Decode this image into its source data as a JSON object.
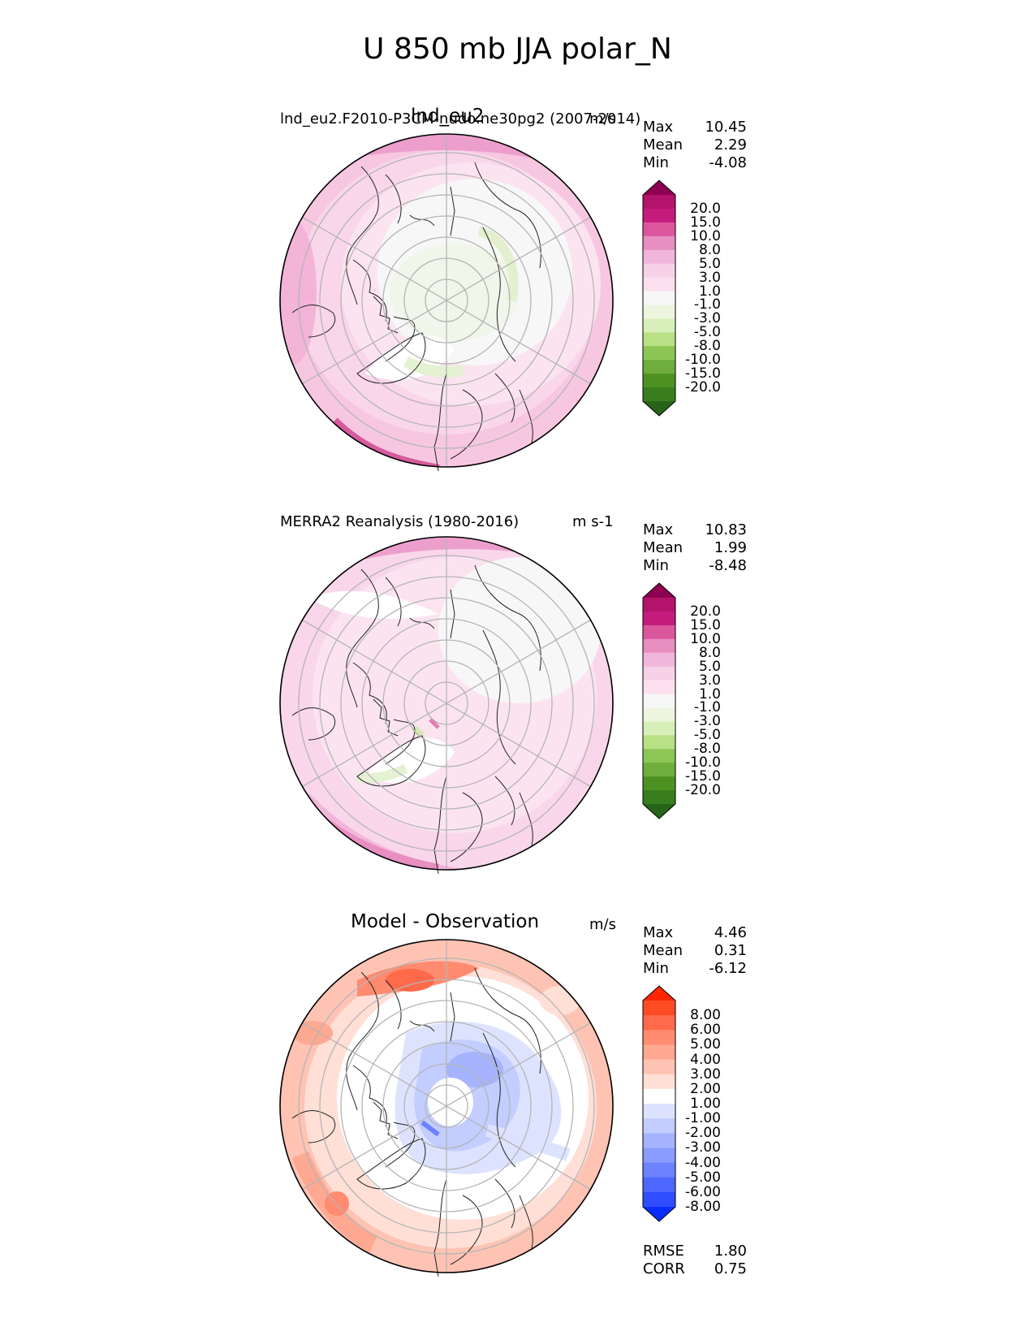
{
  "title": "U 850 mb JJA polar_N",
  "panels": [
    {
      "id": "test",
      "case_label": "lnd_eu2.F2010-P3CM-nudo.ne30pg2 (2007-2014)",
      "short_name": "lnd_eu2",
      "units": "m/s",
      "stats": [
        {
          "label": "Max",
          "value": "10.45"
        },
        {
          "label": "Mean",
          "value": "2.29"
        },
        {
          "label": "Min",
          "value": "-4.08"
        }
      ],
      "colorbar": {
        "labels": [
          "20.0",
          "15.0",
          "10.0",
          "8.0",
          "5.0",
          "3.0",
          "1.0",
          "-1.0",
          "-3.0",
          "-5.0",
          "-8.0",
          "-10.0",
          "-15.0",
          "-20.0"
        ],
        "colors": [
          "#8e0152",
          "#b3136b",
          "#c51b7d",
          "#dc569e",
          "#e88ec0",
          "#f1b6da",
          "#f6d1e7",
          "#fde0ef",
          "#f7f7f7",
          "#edf5de",
          "#d9efba",
          "#b8e186",
          "#8dc654",
          "#6fae3c",
          "#4d9221",
          "#387e1f",
          "#276419"
        ]
      }
    },
    {
      "id": "reference",
      "case_label": "MERRA2 Reanalysis (1980-2016)",
      "units": "m s-1",
      "stats": [
        {
          "label": "Max",
          "value": "10.83"
        },
        {
          "label": "Mean",
          "value": "1.99"
        },
        {
          "label": "Min",
          "value": "-8.48"
        }
      ],
      "colorbar": {
        "labels": [
          "20.0",
          "15.0",
          "10.0",
          "8.0",
          "5.0",
          "3.0",
          "1.0",
          "-1.0",
          "-3.0",
          "-5.0",
          "-8.0",
          "-10.0",
          "-15.0",
          "-20.0"
        ],
        "colors": [
          "#8e0152",
          "#b3136b",
          "#c51b7d",
          "#dc569e",
          "#e88ec0",
          "#f1b6da",
          "#f6d1e7",
          "#fde0ef",
          "#f7f7f7",
          "#edf5de",
          "#d9efba",
          "#b8e186",
          "#8dc654",
          "#6fae3c",
          "#4d9221",
          "#387e1f",
          "#276419"
        ]
      }
    },
    {
      "id": "difference",
      "case_label": "Model - Observation",
      "units": "m/s",
      "stats": [
        {
          "label": "Max",
          "value": "4.46"
        },
        {
          "label": "Mean",
          "value": "0.31"
        },
        {
          "label": "Min",
          "value": "-6.12"
        }
      ],
      "extra_stats": [
        {
          "label": "RMSE",
          "value": "1.80"
        },
        {
          "label": "CORR",
          "value": "0.75"
        }
      ],
      "colorbar": {
        "labels": [
          "8.00",
          "6.00",
          "5.00",
          "4.00",
          "3.00",
          "2.00",
          "1.00",
          "-1.00",
          "-2.00",
          "-3.00",
          "-4.00",
          "-5.00",
          "-6.00",
          "-8.00"
        ],
        "colors": [
          "#ff2500",
          "#ff4b24",
          "#ff6a4b",
          "#ff8b70",
          "#ffa892",
          "#ffc3b3",
          "#ffdfd6",
          "#ffffff",
          "#dde3ff",
          "#c3cdff",
          "#a6b4ff",
          "#8a9cff",
          "#6c82ff",
          "#4d67ff",
          "#2f4dff",
          "#0a2dff"
        ]
      }
    }
  ]
}
